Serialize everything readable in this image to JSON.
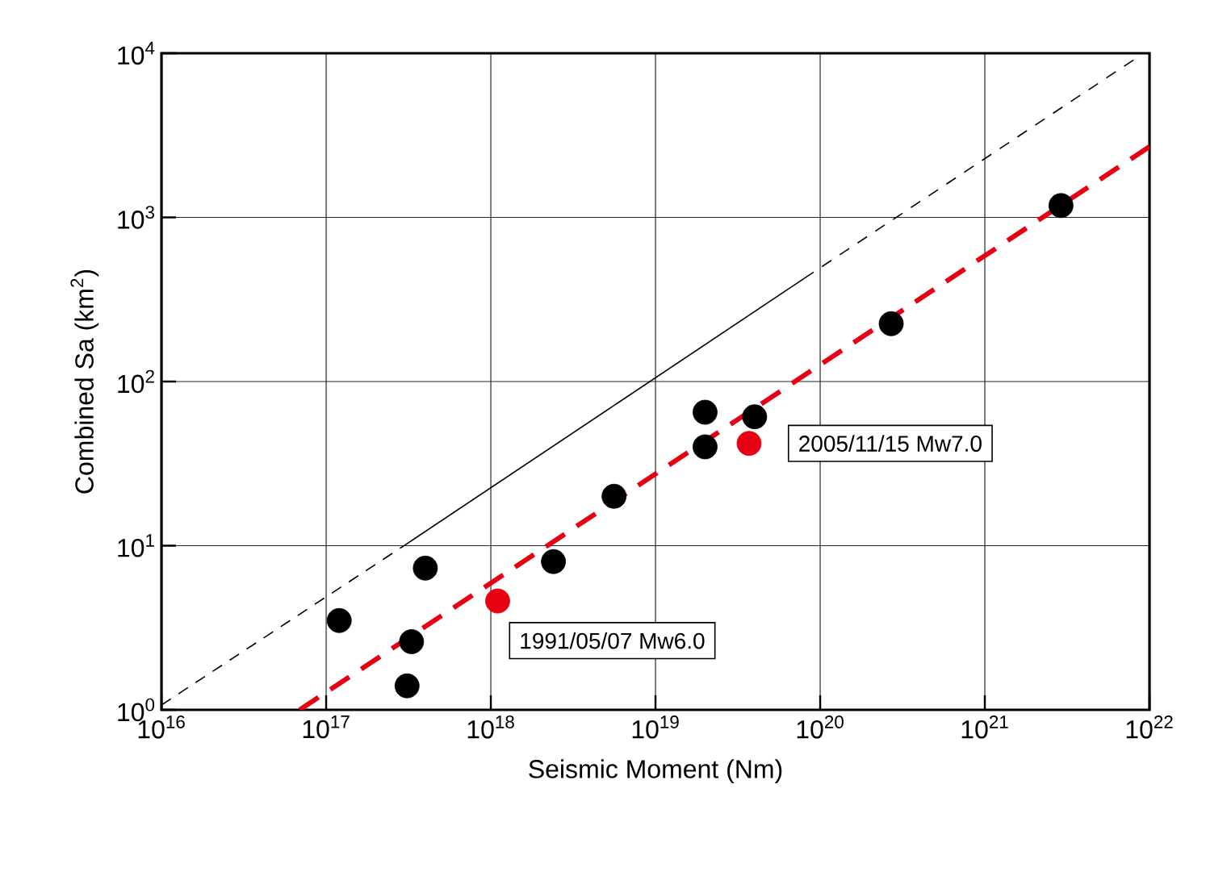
{
  "chart_data": {
    "type": "scatter",
    "xlabel": "Seismic Moment (Nm)",
    "ylabel": "Combined Sa (km$^{2}$)",
    "log": "xy",
    "grid": true,
    "xlim": [
      1e+16,
      1e+22
    ],
    "ylim": [
      1,
      10000
    ],
    "xticks": [
      {
        "value": 1e+16,
        "label": "10$^{16}$"
      },
      {
        "value": 1e+17,
        "label": "10$^{17}$"
      },
      {
        "value": 1e+18,
        "label": "10$^{18}$"
      },
      {
        "value": 1e+19,
        "label": "10$^{19}$"
      },
      {
        "value": 1e+20,
        "label": "10$^{20}$"
      },
      {
        "value": 1e+21,
        "label": "10$^{21}$"
      },
      {
        "value": 1e+22,
        "label": "10$^{22}$"
      }
    ],
    "yticks": [
      {
        "value": 1,
        "label": "10$^{0}$"
      },
      {
        "value": 10,
        "label": "10$^{1}$"
      },
      {
        "value": 100,
        "label": "10$^{2}$"
      },
      {
        "value": 1000,
        "label": "10$^{3}$"
      },
      {
        "value": 10000,
        "label": "10$^{4}$"
      }
    ],
    "series": [
      {
        "type": "line",
        "color": "#000000",
        "line_style": "dashed",
        "marker": "none",
        "x": [
          1e+16,
          3.2e+17
        ],
        "values": [
          1.07,
          10.5
        ]
      },
      {
        "type": "line",
        "color": "#000000",
        "line_style": "solid",
        "marker": "none",
        "x": [
          3.2e+17,
          8e+19
        ],
        "values": [
          10.5,
          425
        ]
      },
      {
        "type": "line",
        "color": "#000000",
        "line_style": "dashed",
        "marker": "none",
        "x": [
          8e+19,
          8e+21
        ],
        "values": [
          425,
          9100
        ]
      },
      {
        "type": "line",
        "color": "#e60012",
        "line_style": "dashed",
        "marker": "none",
        "x": [
          6.9e+16,
          1e+22
        ],
        "values": [
          1.0,
          2700
        ]
      },
      {
        "color": "#000000",
        "marker": "circle",
        "x": [
          1.2e+17,
          4e+17,
          3.3e+17,
          3.1e+17,
          2.4e+18,
          5.6e+18,
          2e+19,
          2e+19,
          4e+19,
          2.7e+20,
          2.9e+21
        ],
        "values": [
          3.5,
          7.3,
          2.6,
          1.4,
          8.0,
          20,
          65,
          40,
          61,
          225,
          1180
        ]
      },
      {
        "color": "#e60012",
        "marker": "circle",
        "x": [
          1.1e+18,
          3.7e+19
        ],
        "values": [
          4.6,
          42
        ]
      }
    ],
    "annotations": [
      {
        "text": "1991/05/07 Mw6.0",
        "x": 1.1e+18,
        "y": 4.6
      },
      {
        "text": "2005/11/15 Mw7.0",
        "x": 3.7e+19,
        "y": 42
      }
    ]
  }
}
